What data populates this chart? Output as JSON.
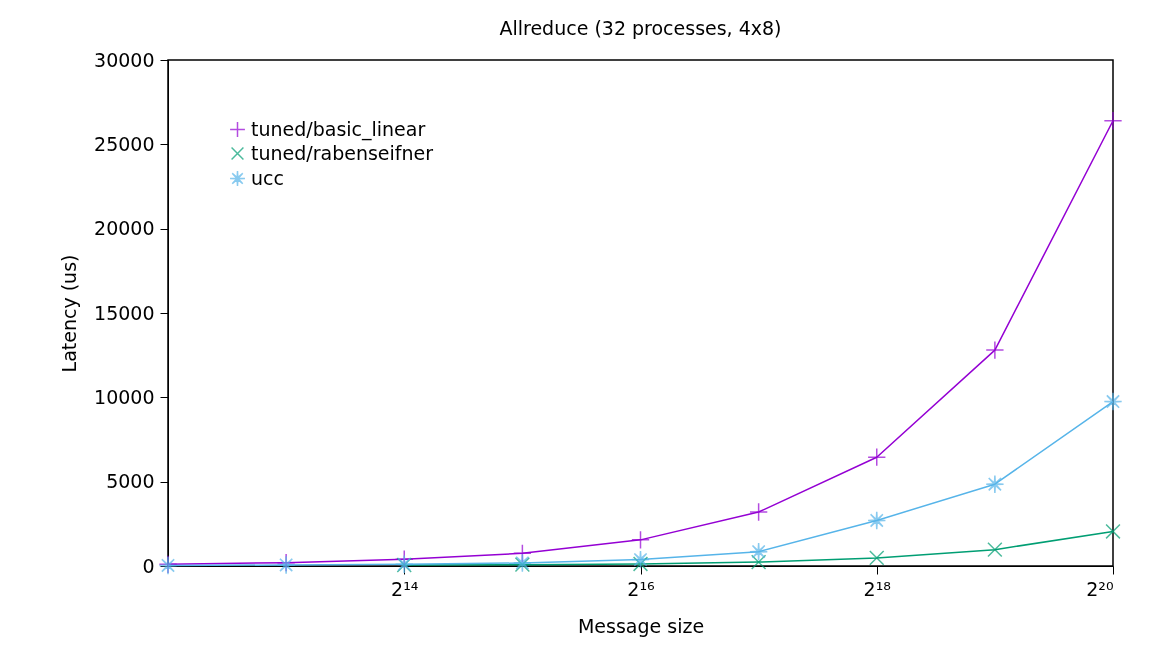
{
  "chart_data": {
    "type": "line",
    "title": "Allreduce (32 processes, 4x8)",
    "xlabel": "Message size",
    "ylabel": "Latency (us)",
    "x": [
      4096,
      8192,
      16384,
      32768,
      65536,
      131072,
      262144,
      524288,
      1048576
    ],
    "series": [
      {
        "name": "tuned/basic_linear",
        "color": "#9400d3",
        "marker": "cross",
        "values": [
          100,
          200,
          400,
          750,
          1550,
          3200,
          6450,
          12800,
          26400
        ]
      },
      {
        "name": "tuned/rabenseifner",
        "color": "#009e73",
        "marker": "x",
        "values": [
          null,
          null,
          60,
          80,
          120,
          230,
          480,
          970,
          2050
        ]
      },
      {
        "name": "ucc",
        "color": "#56b4e9",
        "marker": "star",
        "values": [
          30,
          60,
          100,
          180,
          380,
          850,
          2700,
          4850,
          9750
        ]
      }
    ],
    "log": "x",
    "xlim": [
      4096,
      1048576
    ],
    "xticks": [
      {
        "value": 16384,
        "label": "2¹⁴"
      },
      {
        "value": 65536,
        "label": "2¹⁶"
      },
      {
        "value": 262144,
        "label": "2¹⁸"
      },
      {
        "value": 1048576,
        "label": "2²⁰"
      }
    ],
    "ylim": [
      0,
      30000
    ],
    "yticks": [
      0,
      5000,
      10000,
      15000,
      20000,
      25000,
      30000
    ],
    "grid": false,
    "legend": "top left",
    "line_style": "solid"
  }
}
